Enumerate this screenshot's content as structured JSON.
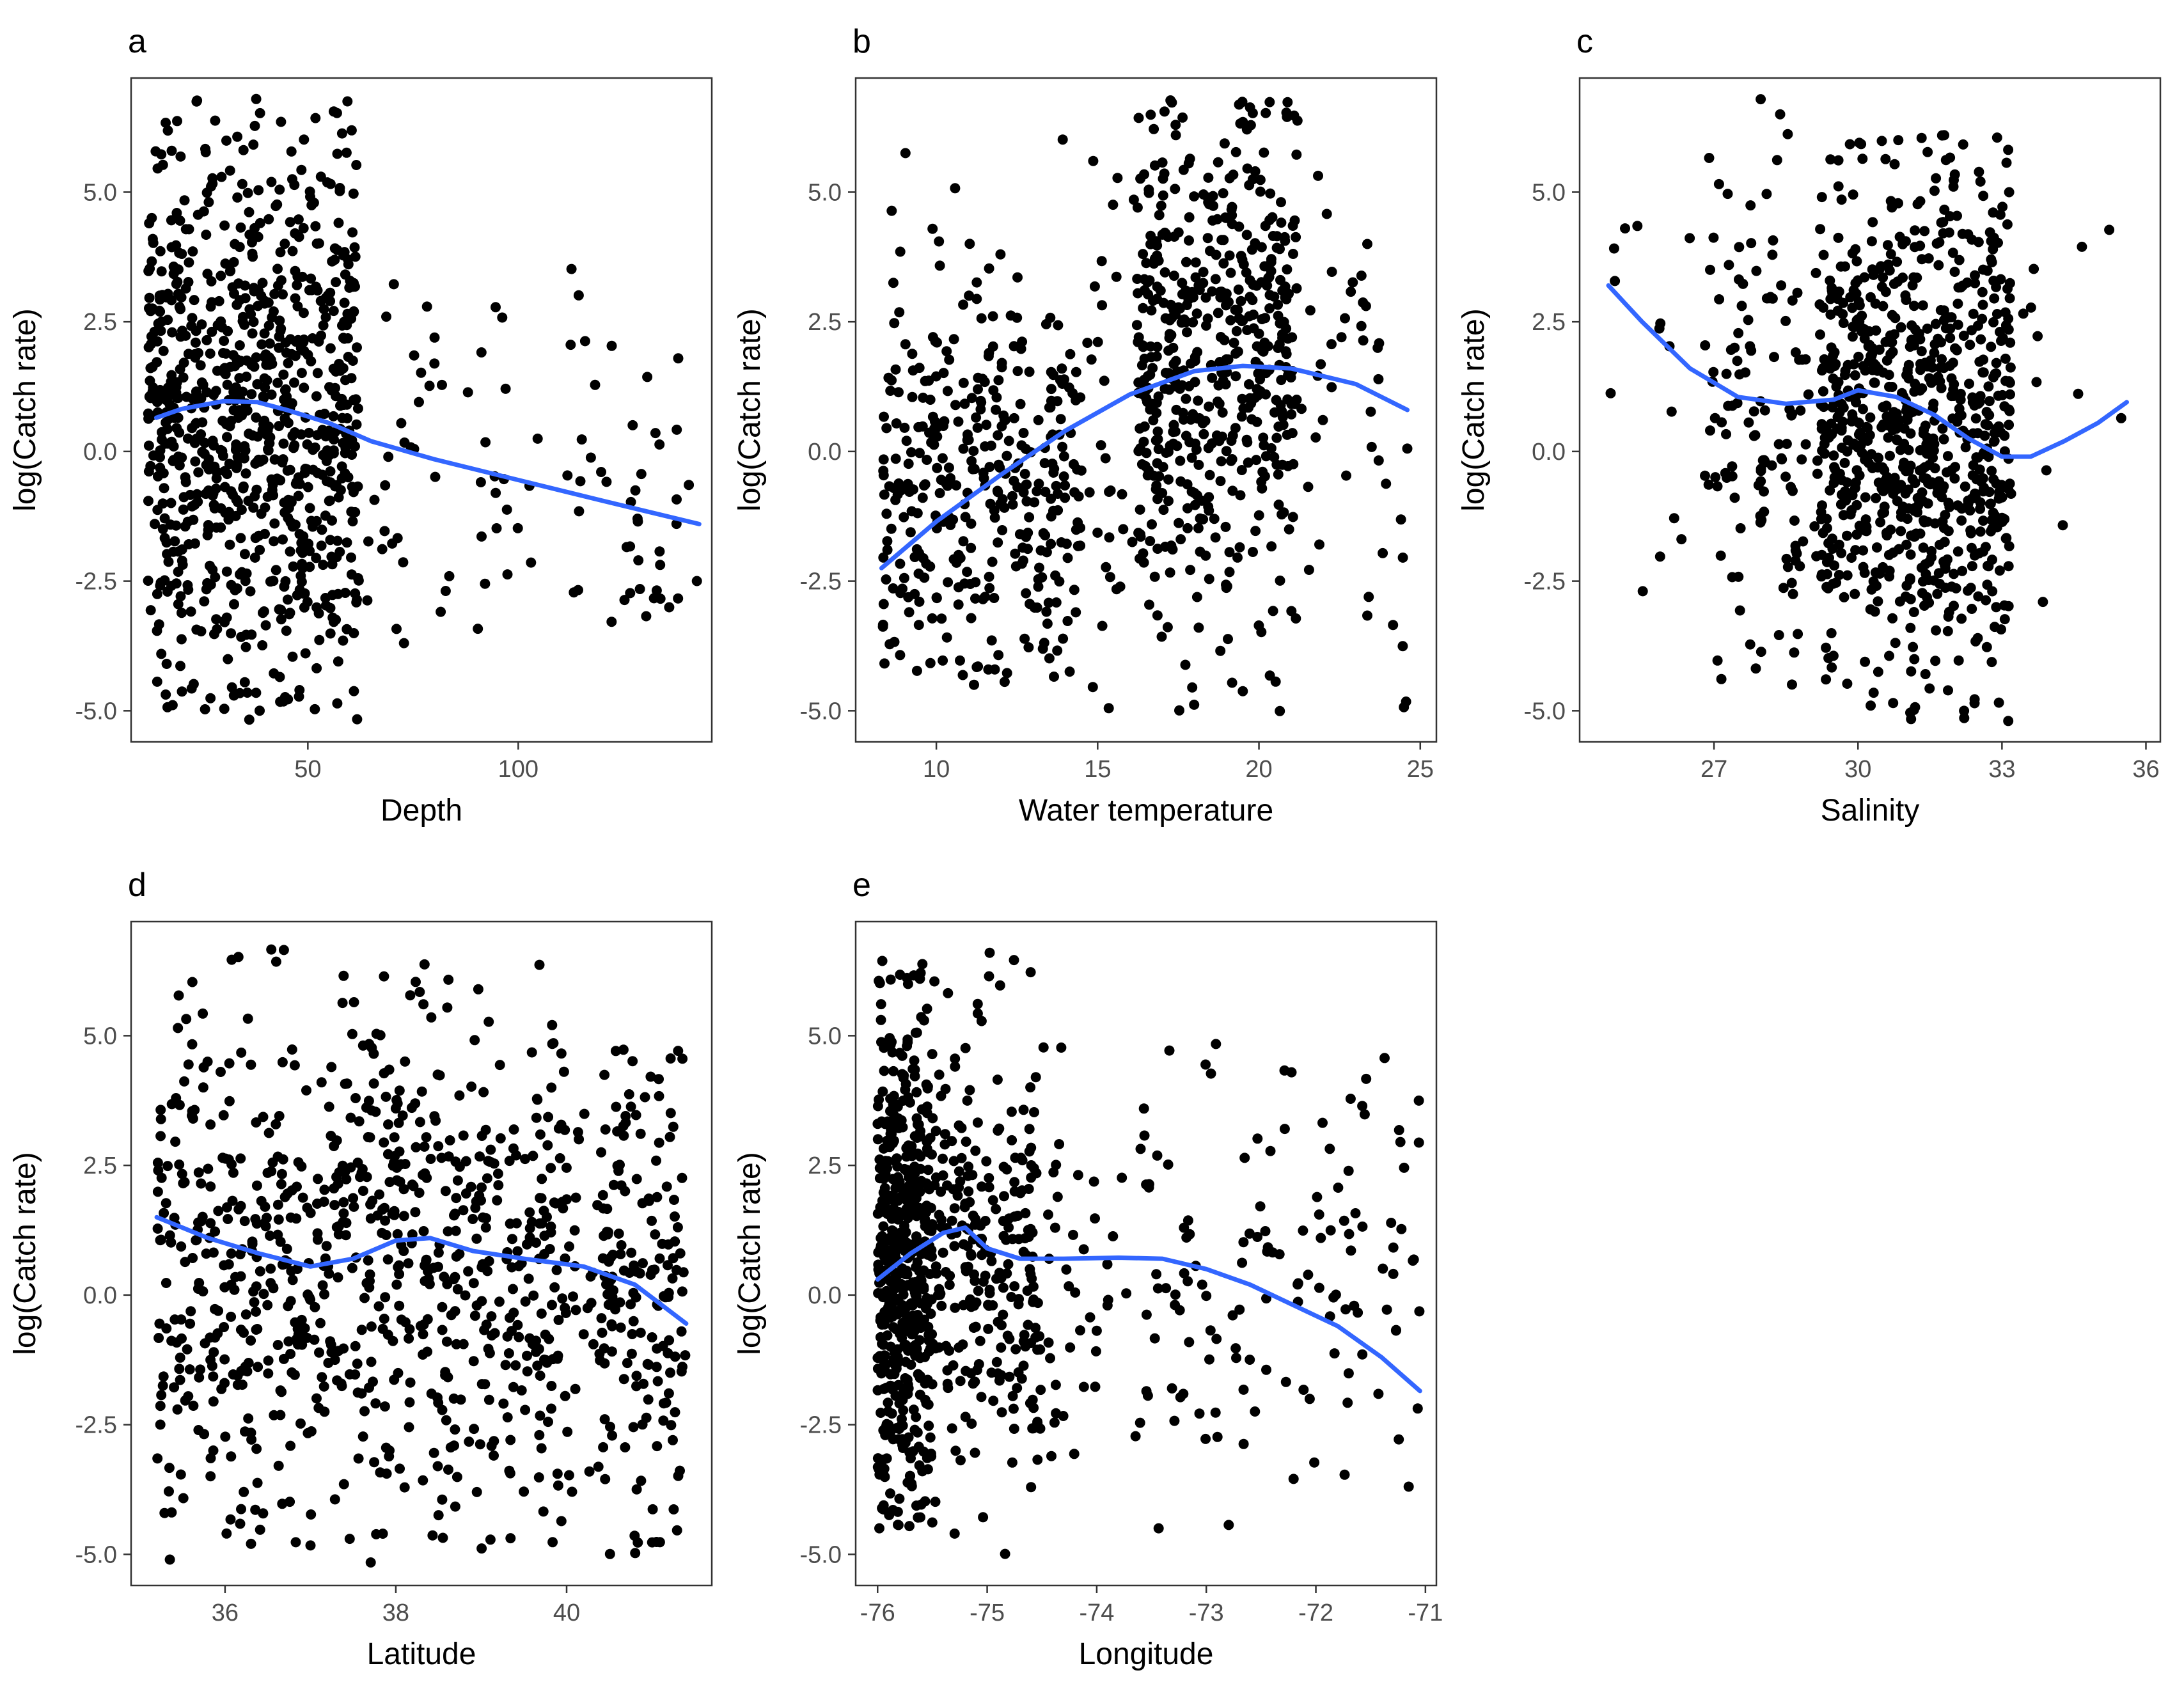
{
  "figure": {
    "colors": {
      "point": "#000000",
      "smooth": "#3366FF",
      "frame": "#333333",
      "tick_text": "#4d4d4d"
    }
  },
  "chart_data": [
    {
      "type": "scatter",
      "panel": "a",
      "title": "",
      "xlabel": "Depth",
      "ylabel": "log(Catch rate)",
      "xlim": [
        8,
        146
      ],
      "ylim": [
        -5.6,
        7.2
      ],
      "xticks": [
        50,
        100
      ],
      "xtick_labels": [
        "50",
        "100"
      ],
      "yticks": [
        -5.0,
        -2.5,
        0.0,
        2.5,
        5.0
      ],
      "ytick_labels": [
        "-5.0",
        "-2.5",
        "0.0",
        "2.5",
        "5.0"
      ],
      "smooth": {
        "x": [
          14,
          20,
          30,
          38,
          45,
          55,
          65,
          80,
          100,
          120,
          143
        ],
        "y": [
          0.65,
          0.82,
          0.97,
          0.95,
          0.8,
          0.55,
          0.2,
          -0.15,
          -0.55,
          -0.95,
          -1.4
        ]
      },
      "point_generator": {
        "count": 950,
        "seed": 11,
        "clusters": [
          {
            "weight": 0.9,
            "x": [
              12,
              62
            ],
            "y_mean": 0.7,
            "y_sd": 2.7,
            "y_range": [
              -5.2,
              6.8
            ]
          },
          {
            "weight": 0.07,
            "x": [
              62,
              125
            ],
            "y_mean": -0.6,
            "y_sd": 2.0,
            "y_range": [
              -4,
              4
            ]
          },
          {
            "weight": 0.03,
            "x": [
              125,
              143
            ],
            "y_mean": -1.5,
            "y_sd": 1.5,
            "y_range": [
              -3.2,
              2.4
            ]
          }
        ]
      },
      "point_count": 950
    },
    {
      "type": "scatter",
      "panel": "b",
      "title": "",
      "xlabel": "Water temperature",
      "ylabel": "log(Catch rate)",
      "xlim": [
        7.5,
        25.5
      ],
      "ylim": [
        -5.6,
        7.2
      ],
      "xticks": [
        10,
        15,
        20,
        25
      ],
      "xtick_labels": [
        "10",
        "15",
        "20",
        "25"
      ],
      "yticks": [
        -5.0,
        -2.5,
        0.0,
        2.5,
        5.0
      ],
      "ytick_labels": [
        "-5.0",
        "-2.5",
        "0.0",
        "2.5",
        "5.0"
      ],
      "smooth": {
        "x": [
          8.3,
          10,
          12,
          14,
          16,
          18,
          19.5,
          21,
          23,
          24.6
        ],
        "y": [
          -2.25,
          -1.35,
          -0.45,
          0.4,
          1.1,
          1.55,
          1.65,
          1.6,
          1.3,
          0.8
        ]
      },
      "point_generator": {
        "count": 950,
        "seed": 23,
        "clusters": [
          {
            "weight": 0.38,
            "x": [
              8.3,
              14.5
            ],
            "y_mean": -0.8,
            "y_sd": 2.0,
            "y_range": [
              -4.5,
              6.6
            ]
          },
          {
            "weight": 0.47,
            "x": [
              16.2,
              21.2
            ],
            "y_mean": 1.9,
            "y_sd": 2.3,
            "y_range": [
              -5.2,
              6.8
            ]
          },
          {
            "weight": 0.15,
            "x": [
              14.5,
              24.6
            ],
            "y_mean": 0.5,
            "y_sd": 2.6,
            "y_range": [
              -5,
              6
            ]
          }
        ]
      },
      "point_count": 950
    },
    {
      "type": "scatter",
      "panel": "c",
      "title": "",
      "xlabel": "Salinity",
      "ylabel": "log(Catch rate)",
      "xlim": [
        24.2,
        36.3
      ],
      "ylim": [
        -5.6,
        7.2
      ],
      "xticks": [
        27,
        30,
        33,
        36
      ],
      "xtick_labels": [
        "27",
        "30",
        "33",
        "36"
      ],
      "yticks": [
        -5.0,
        -2.5,
        0.0,
        2.5,
        5.0
      ],
      "ytick_labels": [
        "-5.0",
        "-2.5",
        "0.0",
        "2.5",
        "5.0"
      ],
      "smooth": {
        "x": [
          24.8,
          25.5,
          26.5,
          27.5,
          28.5,
          29.5,
          30.0,
          30.8,
          31.6,
          32.3,
          33.0,
          33.6,
          34.3,
          35.0,
          35.6
        ],
        "y": [
          3.2,
          2.5,
          1.6,
          1.05,
          0.92,
          1.0,
          1.18,
          1.05,
          0.7,
          0.25,
          -0.1,
          -0.1,
          0.2,
          0.55,
          0.95
        ]
      },
      "point_generator": {
        "count": 950,
        "seed": 37,
        "clusters": [
          {
            "weight": 0.82,
            "x": [
              29.2,
              33.2
            ],
            "y_mean": 0.6,
            "y_sd": 2.5,
            "y_range": [
              -5.2,
              6.1
            ]
          },
          {
            "weight": 0.12,
            "x": [
              26.8,
              29.2
            ],
            "y_mean": 0.4,
            "y_sd": 2.6,
            "y_range": [
              -4.5,
              6.8
            ]
          },
          {
            "weight": 0.06,
            "x": [
              24.8,
              35.6
            ],
            "y_mean": 1.0,
            "y_sd": 2.2,
            "y_range": [
              -3,
              4.5
            ]
          }
        ]
      },
      "point_count": 950
    },
    {
      "type": "scatter",
      "panel": "d",
      "title": "",
      "xlabel": "Latitude",
      "ylabel": "log(Catch rate)",
      "xlim": [
        34.9,
        41.7
      ],
      "ylim": [
        -5.6,
        7.2
      ],
      "xticks": [
        36,
        38,
        40
      ],
      "xtick_labels": [
        "36",
        "38",
        "40"
      ],
      "yticks": [
        -5.0,
        -2.5,
        0.0,
        2.5,
        5.0
      ],
      "ytick_labels": [
        "-5.0",
        "-2.5",
        "0.0",
        "2.5",
        "5.0"
      ],
      "smooth": {
        "x": [
          35.2,
          35.8,
          36.4,
          37.0,
          37.5,
          38.0,
          38.4,
          38.9,
          39.5,
          40.2,
          40.8,
          41.4
        ],
        "y": [
          1.5,
          1.1,
          0.8,
          0.55,
          0.7,
          1.05,
          1.1,
          0.85,
          0.7,
          0.55,
          0.2,
          -0.55
        ]
      },
      "point_generator": {
        "count": 950,
        "seed": 53,
        "clusters": [
          {
            "weight": 0.78,
            "x": [
              35.2,
              40.0
            ],
            "y_mean": 0.7,
            "y_sd": 2.5,
            "y_range": [
              -5.2,
              6.7
            ]
          },
          {
            "weight": 0.17,
            "x": [
              40.4,
              41.4
            ],
            "y_mean": 0.3,
            "y_sd": 2.4,
            "y_range": [
              -5,
              4.9
            ]
          },
          {
            "weight": 0.05,
            "x": [
              39.5,
              40.5
            ],
            "y_mean": 0.0,
            "y_sd": 2.0,
            "y_range": [
              -4,
              3.8
            ]
          }
        ]
      },
      "point_count": 950
    },
    {
      "type": "scatter",
      "panel": "e",
      "title": "",
      "xlabel": "Longitude",
      "ylabel": "log(Catch rate)",
      "xlim": [
        -76.2,
        -70.9
      ],
      "ylim": [
        -5.6,
        7.2
      ],
      "xticks": [
        -76,
        -75,
        -74,
        -73,
        -72,
        -71
      ],
      "xtick_labels": [
        "-76",
        "-75",
        "-74",
        "-73",
        "-72",
        "-71"
      ],
      "yticks": [
        -5.0,
        -2.5,
        0.0,
        2.5,
        5.0
      ],
      "ytick_labels": [
        "-5.0",
        "-2.5",
        "0.0",
        "2.5",
        "5.0"
      ],
      "smooth": {
        "x": [
          -76.0,
          -75.7,
          -75.4,
          -75.2,
          -75.0,
          -74.7,
          -74.3,
          -73.8,
          -73.4,
          -73.0,
          -72.6,
          -72.2,
          -71.8,
          -71.4,
          -71.05
        ],
        "y": [
          0.3,
          0.8,
          1.2,
          1.3,
          0.9,
          0.7,
          0.7,
          0.72,
          0.7,
          0.5,
          0.2,
          -0.2,
          -0.6,
          -1.2,
          -1.85
        ]
      },
      "point_generator": {
        "count": 950,
        "seed": 71,
        "clusters": [
          {
            "weight": 0.55,
            "x": [
              -76.0,
              -75.5
            ],
            "y_mean": 0.5,
            "y_sd": 2.5,
            "y_range": [
              -4.5,
              6.5
            ]
          },
          {
            "weight": 0.27,
            "x": [
              -75.5,
              -74.5
            ],
            "y_mean": 0.7,
            "y_sd": 2.4,
            "y_range": [
              -5.2,
              6.8
            ]
          },
          {
            "weight": 0.18,
            "x": [
              -74.5,
              -71.05
            ],
            "y_mean": 0.2,
            "y_sd": 2.3,
            "y_range": [
              -5,
              4.9
            ]
          }
        ]
      },
      "point_count": 950
    }
  ]
}
